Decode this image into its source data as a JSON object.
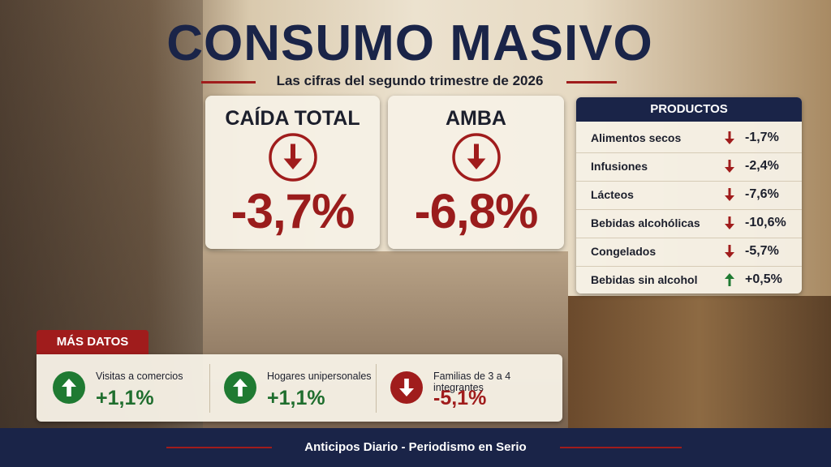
{
  "header": {
    "title": "CONSUMO MASIVO",
    "subtitle": "Las cifras del segundo trimestre de 2026"
  },
  "cards": [
    {
      "title": "CAÍDA TOTAL",
      "value": "-3,7%"
    },
    {
      "title": "AMBA",
      "value": "-6,8%"
    }
  ],
  "products": {
    "title": "PRODUCTOS",
    "rows": [
      {
        "label": "Alimentos secos",
        "value": "-1,7%"
      },
      {
        "label": "Infusiones",
        "value": "-2,4%"
      },
      {
        "label": "Lácteos",
        "value": "-7,6%"
      },
      {
        "label": "Bebidas alcohólicas",
        "value": "-10,6%"
      },
      {
        "label": "Congelados",
        "value": "-5,7%"
      },
      {
        "label": "Bebidas sin alcohol",
        "value": "+0,5%"
      }
    ]
  },
  "more": {
    "title": "MÁS DATOS",
    "items": [
      {
        "label": "Visitas a comercios",
        "value": "+1,1%"
      },
      {
        "label": "Hogares unipersonales",
        "value": "+1,1%"
      },
      {
        "label": "Familias de 3 a 4 integrantes",
        "value": "-5,1%"
      }
    ]
  },
  "footer": {
    "text": "Anticipos Diario - Periodismo en Serio"
  }
}
